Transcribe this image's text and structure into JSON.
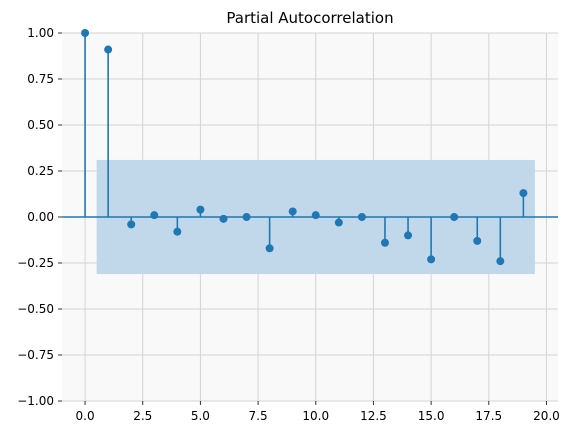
{
  "chart_data": {
    "type": "stem",
    "title": "Partial Autocorrelation",
    "xlabel": "",
    "ylabel": "",
    "xlim": [
      -1,
      20.5
    ],
    "ylim": [
      -1.0,
      1.0
    ],
    "x_ticks": [
      0,
      2.5,
      5,
      7.5,
      10,
      12.5,
      15,
      17.5,
      20
    ],
    "x_tick_labels": [
      "0.0",
      "2.5",
      "5.0",
      "7.5",
      "10.0",
      "12.5",
      "15.0",
      "17.5",
      "20.0"
    ],
    "y_ticks": [
      1,
      0.75,
      0.5,
      0.25,
      0,
      -0.25,
      -0.5,
      -0.75,
      -1
    ],
    "y_tick_labels": [
      "1.00",
      "0.75",
      "0.50",
      "0.25",
      "0.00",
      "−0.25",
      "−0.50",
      "−0.75",
      "−1.00"
    ],
    "grid": true,
    "confidence_band": {
      "x_start": 0.5,
      "x_end": 19.5,
      "lower": -0.31,
      "upper": 0.31,
      "color": "#c1d8ea"
    },
    "series": [
      {
        "x": [
          0,
          1,
          2,
          3,
          4,
          5,
          6,
          7,
          8,
          9,
          10,
          11,
          12,
          13,
          14,
          15,
          16,
          17,
          18,
          19
        ],
        "values": [
          1.0,
          0.91,
          -0.04,
          0.01,
          -0.08,
          0.04,
          -0.01,
          0.0,
          -0.17,
          0.03,
          0.01,
          -0.03,
          0.0,
          -0.14,
          -0.1,
          -0.23,
          0.0,
          -0.13,
          -0.24,
          0.13
        ],
        "color": "#1f77b4"
      }
    ]
  }
}
